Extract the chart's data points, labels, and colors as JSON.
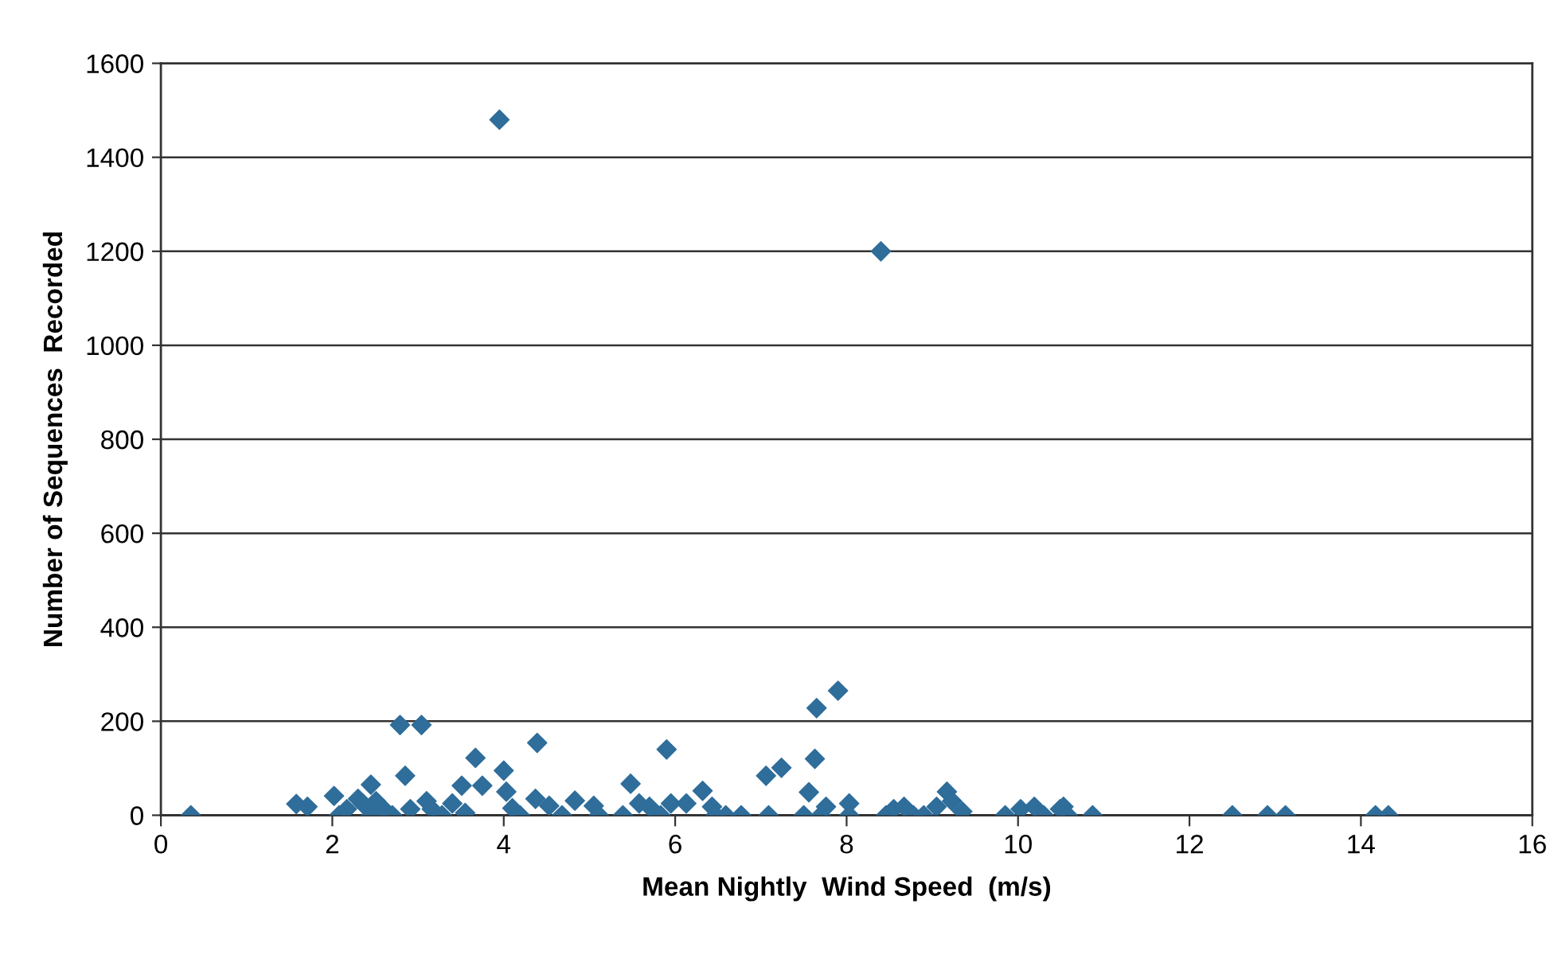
{
  "chart_data": {
    "type": "scatter",
    "xlabel": "Mean Nightly  Wind Speed  (m/s)",
    "ylabel": "Number of Sequences  Recorded",
    "xlim": [
      0,
      16
    ],
    "xticks": [
      0,
      2,
      4,
      6,
      8,
      10,
      12,
      14,
      16
    ],
    "ylim": [
      0,
      1600
    ],
    "yticks": [
      0,
      200,
      400,
      600,
      800,
      1000,
      1200,
      1400,
      1600
    ],
    "grid": "y",
    "marker": "diamond",
    "series": [
      {
        "color": "#2f6d9a",
        "x": [
          0.35,
          1.58,
          1.71,
          2.02,
          2.08,
          2.17,
          2.3,
          2.36,
          2.45,
          2.45,
          2.51,
          2.6,
          2.7,
          2.79,
          2.85,
          2.91,
          3.04,
          3.1,
          3.16,
          3.28,
          3.4,
          3.51,
          3.55,
          3.67,
          3.75,
          3.95,
          4.0,
          4.03,
          4.1,
          4.19,
          4.37,
          4.39,
          4.53,
          4.68,
          4.83,
          5.05,
          5.11,
          5.39,
          5.48,
          5.58,
          5.7,
          5.83,
          5.9,
          5.95,
          6.13,
          6.32,
          6.43,
          6.47,
          6.59,
          6.77,
          7.06,
          7.09,
          7.24,
          7.5,
          7.56,
          7.63,
          7.65,
          7.7,
          7.76,
          7.9,
          8.03,
          8.03,
          8.4,
          8.46,
          8.55,
          8.67,
          8.78,
          8.9,
          9.05,
          9.17,
          9.23,
          9.35,
          9.85,
          10.03,
          10.19,
          10.3,
          10.49,
          10.53,
          10.58,
          10.87,
          12.5,
          12.91,
          13.12,
          14.17,
          14.32
        ],
        "values": [
          0,
          24,
          18,
          41,
          0,
          13,
          35,
          24,
          65,
          0,
          30,
          13,
          0,
          192,
          84,
          13,
          192,
          30,
          13,
          0,
          25,
          63,
          5,
          122,
          63,
          1480,
          95,
          50,
          15,
          0,
          35,
          154,
          20,
          0,
          31,
          20,
          0,
          0,
          67,
          25,
          18,
          0,
          140,
          25,
          25,
          52,
          18,
          0,
          0,
          0,
          84,
          0,
          101,
          0,
          49,
          120,
          228,
          0,
          18,
          265,
          25,
          0,
          1200,
          0,
          13,
          18,
          0,
          0,
          18,
          50,
          30,
          8,
          0,
          13,
          18,
          0,
          13,
          18,
          0,
          0,
          0,
          0,
          0,
          0,
          0
        ]
      }
    ]
  }
}
